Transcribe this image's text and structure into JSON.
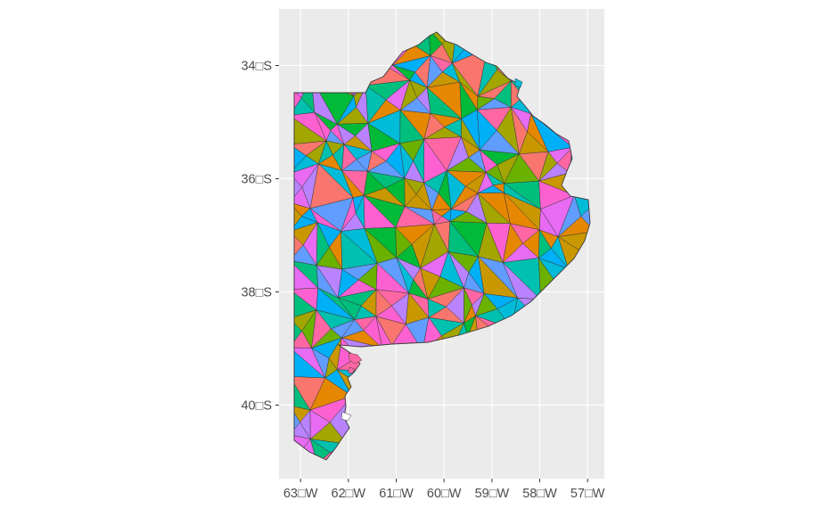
{
  "map": {
    "panel_background": "#ebebeb",
    "grid_color": "#ffffff",
    "outline_color": "#3a3a3a",
    "x_axis": {
      "range": [
        -63.45,
        -56.65
      ],
      "ticks": [
        {
          "value": -63,
          "label": "63□W"
        },
        {
          "value": -62,
          "label": "62□W"
        },
        {
          "value": -61,
          "label": "61□W"
        },
        {
          "value": -60,
          "label": "60□W"
        },
        {
          "value": -59,
          "label": "59□W"
        },
        {
          "value": -58,
          "label": "58□W"
        },
        {
          "value": -57,
          "label": "57□W"
        }
      ]
    },
    "y_axis": {
      "range": [
        -41.3,
        -33.0
      ],
      "ticks": [
        {
          "value": -34,
          "label": "34□S"
        },
        {
          "value": -36,
          "label": "36□S"
        },
        {
          "value": -38,
          "label": "38□S"
        },
        {
          "value": -40,
          "label": "40□S"
        }
      ]
    },
    "fill_palette": [
      "#f8766d",
      "#e58700",
      "#c99800",
      "#a3a500",
      "#6bb100",
      "#00ba38",
      "#00bf7d",
      "#00c0af",
      "#00bcd8",
      "#00b0f6",
      "#619cff",
      "#b983ff",
      "#e76bf3",
      "#fd61d1",
      "#ff67a4"
    ]
  }
}
